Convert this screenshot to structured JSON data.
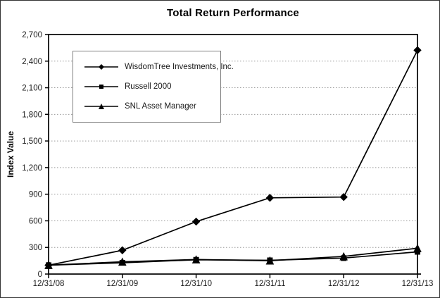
{
  "chart_data": {
    "type": "line",
    "title": "Total Return Performance",
    "xlabel": "",
    "ylabel": "Index Value",
    "categories": [
      "12/31/08",
      "12/31/09",
      "12/31/10",
      "12/31/11",
      "12/31/12",
      "12/31/13"
    ],
    "ylim": [
      0,
      2700
    ],
    "y_tick_values": [
      0,
      300,
      600,
      900,
      1200,
      1500,
      1800,
      2100,
      2400,
      2700
    ],
    "y_tick_labels": [
      "0",
      "300",
      "600",
      "900",
      "1,200",
      "1,500",
      "1,800",
      "2,100",
      "2,400",
      "2,700"
    ],
    "grid": "horizontal-dotted",
    "legend_position": "top-left-inside",
    "series": [
      {
        "name": "WisdomTree Investments, Inc.",
        "marker": "diamond",
        "values": [
          100,
          268,
          591,
          859,
          868,
          2523
        ]
      },
      {
        "name": "Russell 2000",
        "marker": "square",
        "values": [
          100,
          127,
          161,
          155,
          180,
          250
        ]
      },
      {
        "name": "SNL Asset Manager",
        "marker": "triangle",
        "values": [
          100,
          138,
          164,
          151,
          199,
          291
        ]
      }
    ]
  },
  "colors": {
    "series_line": "#000000",
    "marker_fill": "#000000",
    "grid_line": "#999999",
    "plot_frame": "#000000",
    "legend_border": "#7f7f7f",
    "outer_border": "#333333",
    "text": "#1a1a1a",
    "background": "#ffffff"
  }
}
